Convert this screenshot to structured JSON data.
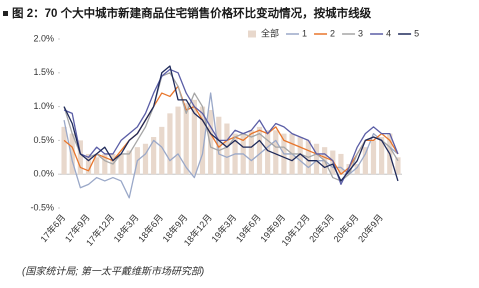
{
  "chart_data": {
    "type": "combo",
    "title": "图 2：70 个大中城市新建商品住宅销售价格环比变动情况，按城市线级",
    "source": "(国家统计局; 第一太平戴维斯市场研究部)",
    "categories": [
      "17年6月",
      null,
      null,
      "17年9月",
      null,
      null,
      "17年12月",
      null,
      null,
      "18年3月",
      null,
      null,
      "18年6月",
      null,
      null,
      "18年9月",
      null,
      null,
      "18年12月",
      null,
      null,
      "19年3月",
      null,
      null,
      "19年6月",
      null,
      null,
      "19年9月",
      null,
      null,
      "19年12月",
      null,
      null,
      "20年3月",
      null,
      null,
      "20年6月",
      null,
      null,
      "20年9月",
      null,
      null
    ],
    "ylim": [
      -0.5,
      2.0
    ],
    "yticks": [
      {
        "value": -0.5,
        "label": "-0.5%"
      },
      {
        "value": 0,
        "label": "0.0%"
      },
      {
        "value": 0.5,
        "label": "0.5%"
      },
      {
        "value": 1.0,
        "label": "1.0%"
      },
      {
        "value": 1.5,
        "label": "1.5%"
      },
      {
        "value": 2.0,
        "label": "2.0%"
      }
    ],
    "grid": false,
    "legend": "top-right",
    "series": [
      {
        "name": "全部",
        "type": "bar",
        "color": "#e8d8cc",
        "values": [
          0.7,
          0.6,
          0.5,
          0.3,
          0.25,
          0.3,
          0.3,
          0.3,
          0.35,
          0.4,
          0.45,
          0.55,
          0.7,
          0.9,
          1.0,
          1.05,
          1.1,
          1.0,
          0.95,
          0.85,
          0.75,
          0.6,
          0.6,
          0.65,
          0.7,
          0.65,
          0.65,
          0.6,
          0.6,
          0.55,
          0.5,
          0.45,
          0.4,
          0.35,
          0.3,
          0.15,
          0.15,
          0.4,
          0.5,
          0.55,
          0.6,
          0.25
        ]
      },
      {
        "name": "1",
        "type": "line",
        "color": "#9aa8c8",
        "values": [
          0.8,
          0.2,
          -0.2,
          -0.15,
          -0.05,
          -0.1,
          -0.05,
          -0.1,
          -0.35,
          0.2,
          0.3,
          0.5,
          0.4,
          0.2,
          0.3,
          0.1,
          -0.05,
          0.3,
          1.2,
          0.3,
          0.25,
          0.3,
          0.3,
          0.2,
          0.3,
          0.4,
          0.5,
          0.3,
          0.3,
          0.2,
          0.1,
          0.2,
          0.2,
          0.1,
          0.1,
          0.0,
          0.1,
          0.3,
          0.6,
          0.5,
          0.4,
          0.3
        ]
      },
      {
        "name": "2",
        "type": "line",
        "color": "#e8762c",
        "values": [
          0.5,
          0.4,
          0.1,
          0.05,
          0.3,
          0.25,
          0.2,
          0.35,
          0.5,
          0.6,
          0.8,
          1.0,
          1.2,
          1.15,
          1.3,
          0.95,
          1.0,
          0.8,
          0.6,
          0.4,
          0.5,
          0.55,
          0.5,
          0.6,
          0.65,
          0.6,
          0.7,
          0.5,
          0.45,
          0.4,
          0.35,
          0.3,
          0.25,
          0.2,
          0.0,
          0.1,
          0.3,
          0.5,
          0.5,
          0.6,
          0.5,
          0.3
        ]
      },
      {
        "name": "3",
        "type": "line",
        "color": "#a6a6a6",
        "values": [
          1.0,
          0.6,
          0.3,
          0.25,
          0.3,
          0.2,
          0.15,
          0.3,
          0.3,
          0.5,
          0.7,
          1.0,
          1.45,
          1.5,
          1.3,
          0.9,
          1.2,
          1.0,
          0.4,
          0.35,
          0.4,
          0.55,
          0.6,
          0.55,
          0.6,
          0.5,
          0.4,
          0.4,
          0.3,
          0.3,
          0.25,
          0.3,
          0.2,
          -0.05,
          -0.1,
          0.0,
          0.3,
          0.5,
          0.55,
          0.5,
          0.4,
          0.2
        ]
      },
      {
        "name": "4",
        "type": "line",
        "color": "#5b5ea6",
        "values": [
          0.95,
          0.9,
          0.3,
          0.25,
          0.4,
          0.3,
          0.3,
          0.5,
          0.6,
          0.7,
          0.9,
          1.2,
          1.45,
          1.55,
          1.5,
          1.2,
          1.0,
          0.9,
          0.7,
          0.5,
          0.5,
          0.65,
          0.6,
          0.65,
          0.8,
          0.6,
          0.75,
          0.7,
          0.6,
          0.55,
          0.5,
          0.3,
          0.3,
          0.2,
          -0.15,
          0.1,
          0.4,
          0.6,
          0.7,
          0.6,
          0.6,
          0.3
        ]
      },
      {
        "name": "5",
        "type": "line",
        "color": "#1f2a5a",
        "values": [
          1.0,
          0.75,
          0.3,
          0.2,
          0.3,
          0.4,
          0.2,
          0.3,
          0.5,
          0.6,
          0.8,
          1.0,
          1.5,
          1.6,
          1.1,
          1.1,
          0.9,
          0.8,
          0.6,
          0.5,
          0.4,
          0.5,
          0.4,
          0.4,
          0.5,
          0.35,
          0.3,
          0.25,
          0.2,
          0.3,
          0.2,
          0.2,
          0.1,
          0.15,
          -0.1,
          0.05,
          0.2,
          0.5,
          0.55,
          0.5,
          0.3,
          -0.1
        ]
      }
    ]
  }
}
